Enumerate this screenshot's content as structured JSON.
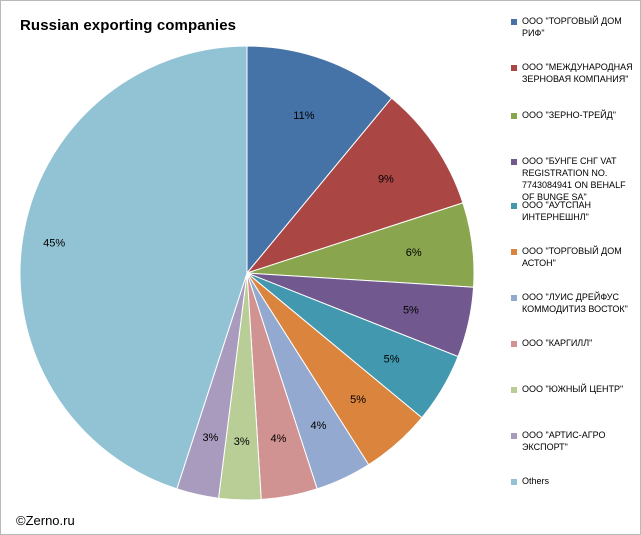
{
  "chart_data": {
    "type": "pie",
    "title": "Russian exporting companies",
    "legend_position": "right",
    "slices": [
      {
        "label": "ООО \"ТОРГОВЫЙ ДОМ РИФ\"",
        "value": 11,
        "display": "11%",
        "color": "#4572a7"
      },
      {
        "label": "ООО \"МЕЖДУНАРОДНАЯ ЗЕРНОВАЯ КОМПАНИЯ\"",
        "value": 9,
        "display": "9%",
        "color": "#aa4643"
      },
      {
        "label": "ООО \"ЗЕРНО-ТРЕЙД\"",
        "value": 6,
        "display": "6%",
        "color": "#89a54e"
      },
      {
        "label": "ООО \"БУНГЕ СНГ VAT REGISTRATION NO. 7743084941 ON BEHALF OF BUNGE SA\"",
        "value": 5,
        "display": "5%",
        "color": "#71588f"
      },
      {
        "label": "ООО \"АУТСПАН ИНТЕРНЕШНЛ\"",
        "value": 5,
        "display": "5%",
        "color": "#4198af"
      },
      {
        "label": "ООО \"ТОРГОВЫЙ ДОМ АСТОН\"",
        "value": 5,
        "display": "5%",
        "color": "#db843d"
      },
      {
        "label": "ООО \"ЛУИС ДРЕЙФУС КОММОДИТИЗ ВОСТОК\"",
        "value": 4,
        "display": "4%",
        "color": "#93a9cf"
      },
      {
        "label": "ООО \"КАРГИЛЛ\"",
        "value": 4,
        "display": "4%",
        "color": "#d19392"
      },
      {
        "label": "ООО \"ЮЖНЫЙ ЦЕНТР\"",
        "value": 3,
        "display": "3%",
        "color": "#b9cd96"
      },
      {
        "label": "ООО \"АРТИС-АГРО ЭКСПОРТ\"",
        "value": 3,
        "display": "3%",
        "color": "#a99bbd"
      },
      {
        "label": "Others",
        "value": 45,
        "display": "45%",
        "color": "#92c3d5"
      }
    ]
  },
  "footer": {
    "copyright": "©Zerno.ru"
  }
}
